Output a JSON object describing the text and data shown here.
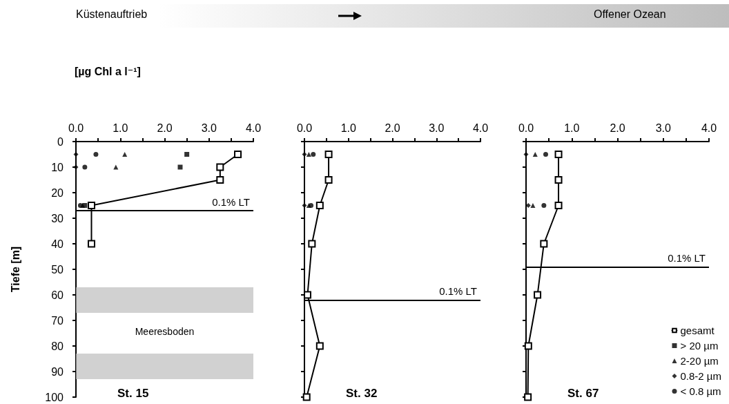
{
  "chart_data": [
    {
      "type": "line",
      "title": "St. 15",
      "xlabel": "[µg Chl a l⁻¹]",
      "ylabel": "Tiefe [m]",
      "annotations": [
        "Küstenauftrieb",
        "Offener Ozean"
      ],
      "xlim": [
        0,
        4
      ],
      "xticks": [
        {
          "value": 0,
          "label": "0.0"
        },
        {
          "value": 0.5,
          "label": null
        },
        {
          "value": 1,
          "label": "1.0"
        },
        {
          "value": 1.5,
          "label": null
        },
        {
          "value": 2,
          "label": "2.0"
        },
        {
          "value": 2.5,
          "label": null
        },
        {
          "value": 3,
          "label": "3.0"
        },
        {
          "value": 3.5,
          "label": null
        },
        {
          "value": 4,
          "label": "4.0"
        }
      ],
      "ylim": [
        100,
        0
      ],
      "yticks": [
        0,
        10,
        20,
        30,
        40,
        50,
        60,
        70,
        80,
        90,
        100
      ],
      "grid": false,
      "legend": false,
      "ref_lines": [
        {
          "axis": "y",
          "value": 27,
          "label": "0.1% LT",
          "color": "#000000"
        }
      ],
      "bands": [
        {
          "axis": "y",
          "from": 57,
          "to": 67,
          "label": "Meeresboden",
          "color": "#bdbdbd"
        },
        {
          "axis": "y",
          "from": 83,
          "to": 93,
          "color": "#bdbdbd"
        }
      ],
      "series": [
        {
          "type": "line",
          "color": "#000000",
          "marker": "square",
          "line_style": "solid",
          "x": [
            3.65,
            3.25,
            3.25,
            0.35,
            0.35
          ],
          "values": [
            5,
            10,
            15,
            25,
            40
          ]
        },
        {
          "type": "scatter",
          "color": "#000000",
          "marker": "square",
          "x": [
            2.5,
            2.35,
            0.2
          ],
          "values": [
            5,
            10,
            25
          ]
        },
        {
          "type": "scatter",
          "color": "#000000",
          "marker": "triangle",
          "x": [
            1.1,
            0.9,
            0.15
          ],
          "values": [
            5,
            10,
            25
          ]
        },
        {
          "type": "scatter",
          "color": "#000000",
          "marker": "diamond",
          "x": [
            0,
            0
          ],
          "values": [
            5,
            10
          ]
        },
        {
          "type": "scatter",
          "color": "#000000",
          "marker": "circle",
          "x": [
            0.45,
            0.2,
            0.1
          ],
          "values": [
            5,
            10,
            25
          ]
        }
      ]
    },
    {
      "type": "line",
      "title": "St. 32",
      "tick_labels": "x",
      "xlim": [
        0,
        4
      ],
      "xticks": [
        {
          "value": 0,
          "label": "0.0"
        },
        {
          "value": 0.5,
          "label": null
        },
        {
          "value": 1,
          "label": "1.0"
        },
        {
          "value": 1.5,
          "label": null
        },
        {
          "value": 2,
          "label": "2.0"
        },
        {
          "value": 2.5,
          "label": null
        },
        {
          "value": 3,
          "label": "3.0"
        },
        {
          "value": 3.5,
          "label": null
        },
        {
          "value": 4,
          "label": "4.0"
        }
      ],
      "ylim": [
        100,
        0
      ],
      "yticks": [
        0,
        10,
        20,
        30,
        40,
        50,
        60,
        70,
        80,
        90,
        100
      ],
      "grid": false,
      "legend": false,
      "ref_lines": [
        {
          "axis": "y",
          "value": 62,
          "label": "0.1% LT",
          "color": "#000000"
        }
      ],
      "series": [
        {
          "type": "line",
          "color": "#000000",
          "marker": "square",
          "line_style": "solid",
          "x": [
            0.55,
            0.55,
            0.35,
            0.17,
            0.07,
            0.35,
            0.05
          ],
          "values": [
            5,
            15,
            25,
            40,
            60,
            80,
            100
          ]
        },
        {
          "type": "scatter",
          "color": "#000000",
          "marker": "square"
        },
        {
          "type": "scatter",
          "color": "#000000",
          "marker": "triangle",
          "x": [
            0.1,
            0.1
          ],
          "values": [
            5,
            25
          ]
        },
        {
          "type": "scatter",
          "color": "#000000",
          "marker": "diamond",
          "x": [
            0,
            0
          ],
          "values": [
            5,
            25
          ]
        },
        {
          "type": "scatter",
          "color": "#000000",
          "marker": "circle",
          "x": [
            0.2,
            0.15
          ],
          "values": [
            5,
            25
          ]
        }
      ]
    },
    {
      "type": "line",
      "title": "St. 67",
      "tick_labels": "x",
      "xlim": [
        0,
        4
      ],
      "xticks": [
        {
          "value": 0,
          "label": "0.0"
        },
        {
          "value": 0.5,
          "label": null
        },
        {
          "value": 1,
          "label": "1.0"
        },
        {
          "value": 1.5,
          "label": null
        },
        {
          "value": 2,
          "label": "2.0"
        },
        {
          "value": 2.5,
          "label": null
        },
        {
          "value": 3,
          "label": "3.0"
        },
        {
          "value": 3.5,
          "label": null
        },
        {
          "value": 4,
          "label": "4.0"
        }
      ],
      "ylim": [
        100,
        0
      ],
      "yticks": [
        0,
        10,
        20,
        30,
        40,
        50,
        60,
        70,
        80,
        90,
        100
      ],
      "grid": false,
      "legend": "bottom right",
      "ref_lines": [
        {
          "axis": "y",
          "value": 49,
          "label": "0.1% LT",
          "color": "#000000"
        }
      ],
      "series": [
        {
          "type": "line",
          "name": "gesamt",
          "color": "#000000",
          "marker": "square",
          "line_style": "solid",
          "x": [
            0.71,
            0.71,
            0.71,
            0.39,
            0.25,
            0.05,
            0.04
          ],
          "values": [
            5,
            15,
            25,
            40,
            60,
            80,
            100
          ]
        },
        {
          "type": "scatter",
          "name": "> 20 µm",
          "color": "#000000",
          "marker": "square"
        },
        {
          "type": "scatter",
          "name": "2-20 µm",
          "color": "#000000",
          "marker": "triangle",
          "x": [
            0.2,
            0.15
          ],
          "values": [
            5,
            25
          ]
        },
        {
          "type": "scatter",
          "name": "0.8-2 µm",
          "color": "#000000",
          "marker": "diamond",
          "x": [
            0,
            0.05
          ],
          "values": [
            5,
            25
          ]
        },
        {
          "type": "scatter",
          "name": "< 0.8 µm",
          "color": "#000000",
          "marker": "circle",
          "x": [
            0.43,
            0.39
          ],
          "values": [
            5,
            25
          ]
        }
      ]
    }
  ]
}
